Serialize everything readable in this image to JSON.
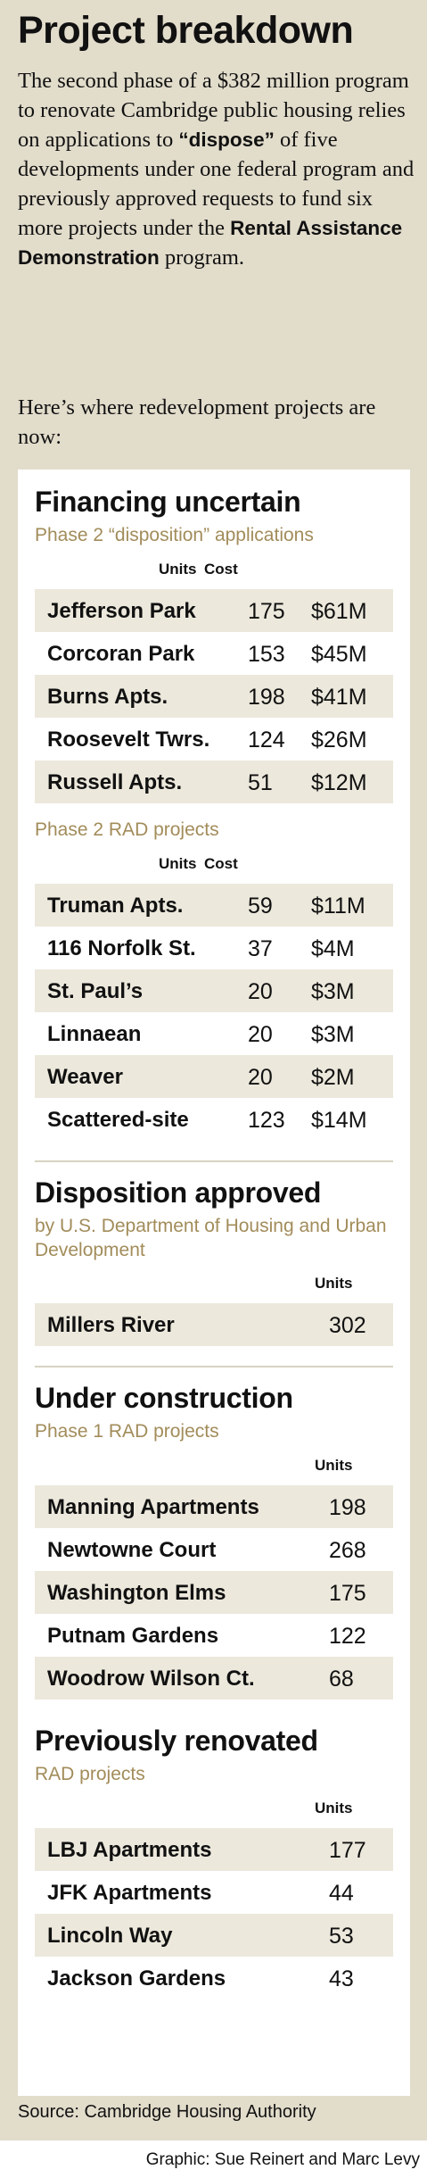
{
  "title": "Project breakdown",
  "intro": {
    "part1": "The second phase of a $382 million program to renovate Cambridge public housing relies on applications to ",
    "emph1": "“dispose”",
    "part2": " of five developments under one federal program and previously approved requests to fund six more projects under the ",
    "emph2": "Rental Assistance Demonstration",
    "part3": " program."
  },
  "lead": "Here’s where redevelopment projects are now:",
  "financing": {
    "title": "Financing uncertain",
    "disposition": {
      "subtitle": "Phase 2 “disposition” applications",
      "units_header": "Units",
      "cost_header": "Cost",
      "rows": [
        {
          "name": "Jefferson Park",
          "units": "175",
          "cost": "$61M"
        },
        {
          "name": "Corcoran Park",
          "units": "153",
          "cost": "$45M"
        },
        {
          "name": "Burns Apts.",
          "units": "198",
          "cost": "$41M"
        },
        {
          "name": "Roosevelt Twrs.",
          "units": "124",
          "cost": "$26M"
        },
        {
          "name": "Russell Apts.",
          "units": "51",
          "cost": "$12M"
        }
      ]
    },
    "rad": {
      "subtitle": "Phase 2 RAD projects",
      "units_header": "Units",
      "cost_header": "Cost",
      "rows": [
        {
          "name": "Truman Apts.",
          "units": "59",
          "cost": "$11M"
        },
        {
          "name": "116 Norfolk St.",
          "units": "37",
          "cost": "$4M"
        },
        {
          "name": "St. Paul’s",
          "units": "20",
          "cost": "$3M"
        },
        {
          "name": "Linnaean",
          "units": "20",
          "cost": "$3M"
        },
        {
          "name": "Weaver",
          "units": "20",
          "cost": "$2M"
        },
        {
          "name": "Scattered-site",
          "units": "123",
          "cost": "$14M"
        }
      ]
    }
  },
  "approved": {
    "title": "Disposition approved",
    "subtitle": "by U.S. Department of Housing and Urban Development",
    "units_header": "Units",
    "rows": [
      {
        "name": "Millers River",
        "units": "302"
      }
    ]
  },
  "construction": {
    "title": "Under construction",
    "subtitle": "Phase 1 RAD projects",
    "units_header": "Units",
    "rows": [
      {
        "name": "Manning Apartments",
        "units": "198"
      },
      {
        "name": "Newtowne Court",
        "units": "268"
      },
      {
        "name": "Washington Elms",
        "units": "175"
      },
      {
        "name": "Putnam Gardens",
        "units": "122"
      },
      {
        "name": "Woodrow Wilson Ct.",
        "units": "68"
      }
    ]
  },
  "renovated": {
    "title": "Previously renovated",
    "subtitle": "RAD projects",
    "units_header": "Units",
    "rows": [
      {
        "name": "LBJ Apartments",
        "units": "177"
      },
      {
        "name": "JFK Apartments",
        "units": "44"
      },
      {
        "name": "Lincoln Way",
        "units": "53"
      },
      {
        "name": "Jackson Gardens",
        "units": "43"
      }
    ]
  },
  "source": "Source: Cambridge Housing Authority",
  "credit": "Graphic: Sue Reinert and Marc Levy",
  "colors": {
    "panel": "#e2dccb",
    "card": "#ffffff",
    "row_shade": "#ece8dc",
    "subtitle": "#a28c5a"
  }
}
